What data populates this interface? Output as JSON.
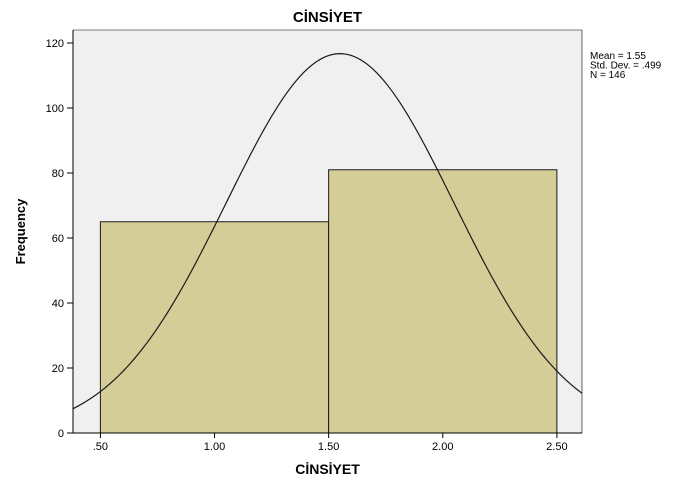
{
  "chart_data": {
    "type": "bar",
    "title": "CİNSİYET",
    "xlabel": "CİNSİYET",
    "ylabel": "Frequency",
    "bins": [
      {
        "start": 0.5,
        "end": 1.5,
        "count": 65
      },
      {
        "start": 1.5,
        "end": 2.5,
        "count": 81
      }
    ],
    "x_ticks": [
      {
        "value": 0.5,
        "label": ".50"
      },
      {
        "value": 1.0,
        "label": "1.00"
      },
      {
        "value": 1.5,
        "label": "1.50"
      },
      {
        "value": 2.0,
        "label": "2.00"
      },
      {
        "value": 2.5,
        "label": "2.50"
      }
    ],
    "y_ticks": [
      0,
      20,
      40,
      60,
      80,
      100,
      120
    ],
    "xlim": [
      0.38,
      2.61
    ],
    "ylim": [
      0,
      124
    ],
    "normal_curve": {
      "mean": 1.55,
      "std_dev": 0.499,
      "n": 146,
      "bin_width": 1.0
    },
    "stats": [
      "Mean = 1.55",
      "Std. Dev. = .499",
      "N = 146"
    ],
    "grid": false,
    "legend_position": "top-right",
    "colors": {
      "bar_fill": "#d4cd97",
      "bar_stroke": "#1a1a1a",
      "plot_background": "#f0f0f0",
      "curve": "#1a1a1a",
      "text": "#000000"
    }
  }
}
